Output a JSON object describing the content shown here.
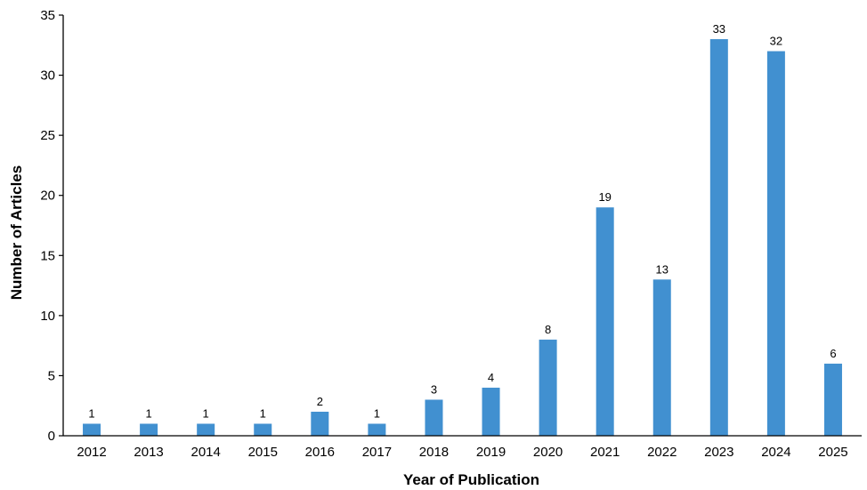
{
  "chart_data": {
    "type": "bar",
    "title": "",
    "xlabel": "Year of Publication",
    "ylabel": "Number of Articles",
    "categories": [
      "2012",
      "2013",
      "2014",
      "2015",
      "2016",
      "2017",
      "2018",
      "2019",
      "2020",
      "2021",
      "2022",
      "2023",
      "2024",
      "2025"
    ],
    "values": [
      1,
      1,
      1,
      1,
      2,
      1,
      3,
      4,
      8,
      19,
      13,
      33,
      32,
      6
    ],
    "ylim": [
      0,
      35
    ],
    "yticks": [
      0,
      5,
      10,
      15,
      20,
      25,
      30,
      35
    ],
    "grid": false,
    "legend": "none",
    "bar_color": "#4190D0",
    "axis_color": "#000000"
  }
}
